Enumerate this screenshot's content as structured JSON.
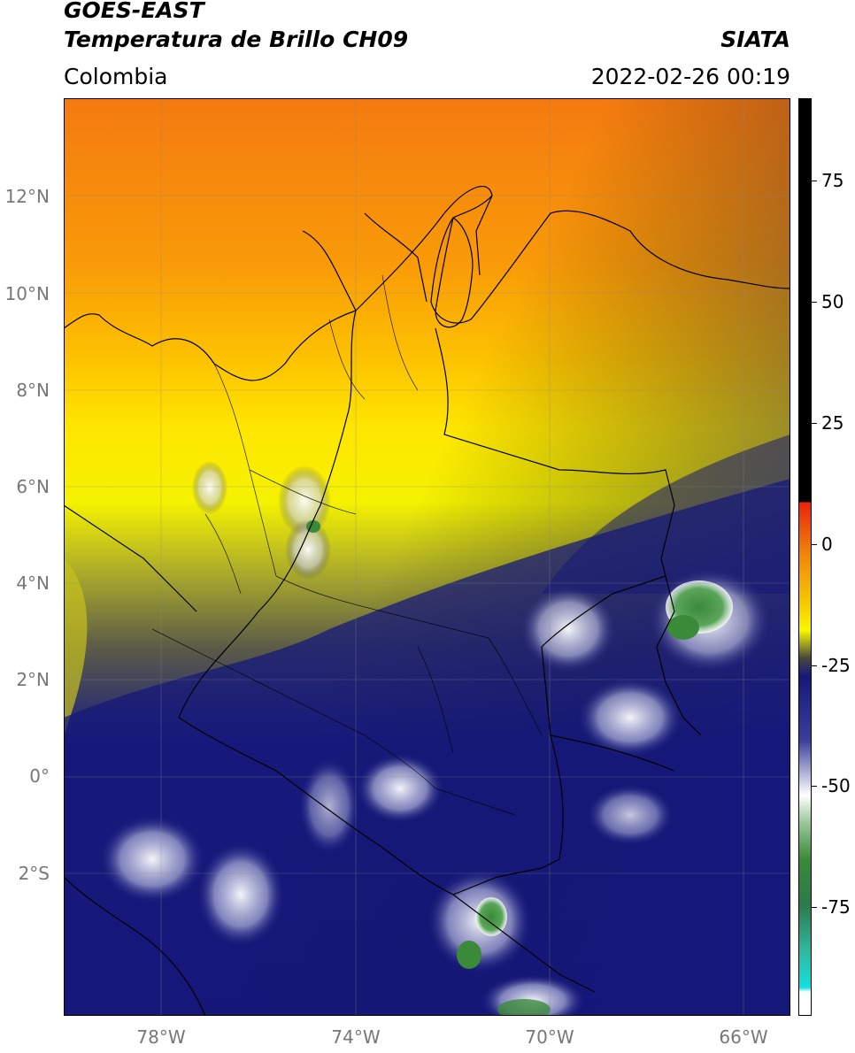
{
  "header": {
    "satellite": "GOES-EAST",
    "product": "Temperatura de Brillo CH09",
    "source": "SIATA",
    "region": "Colombia",
    "datetime": "2022-02-26 00:19"
  },
  "map": {
    "latitude_labels": [
      "12°N",
      "10°N",
      "8°N",
      "6°N",
      "4°N",
      "2°N",
      "0°",
      "2°S"
    ],
    "longitude_labels": [
      "78°W",
      "74°W",
      "70°W",
      "66°W"
    ]
  },
  "colorbar": {
    "tick_labels": [
      "75",
      "50",
      "25",
      "0",
      "-25",
      "-50",
      "-75"
    ],
    "colors": [
      "#000000",
      "#e8230d",
      "#f08a0a",
      "#f5c800",
      "#f8f800",
      "#4a4a3c",
      "#15187a",
      "#ffffff",
      "#3a8a3a",
      "#2fb8a0",
      "#13e0e0"
    ]
  }
}
